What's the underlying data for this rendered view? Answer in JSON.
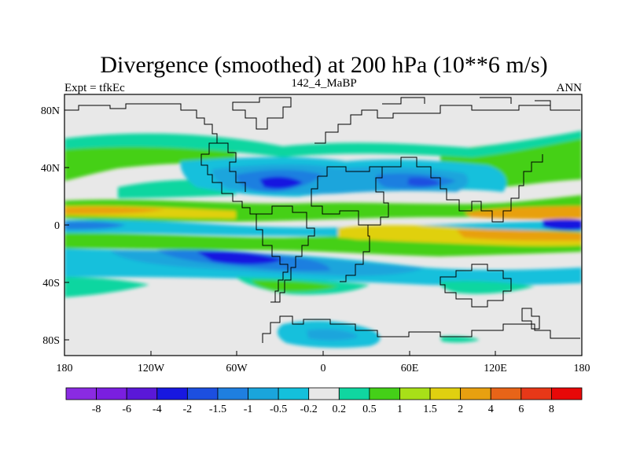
{
  "figure": {
    "title": "Divergence (smoothed) at 200 hPa (10**6 m/s)",
    "left_label": "Expt = tfkEc",
    "center_label": "142_4_MaBP",
    "right_label": "ANN"
  },
  "axes": {
    "x_ticks": [
      "180",
      "120W",
      "60W",
      "0",
      "60E",
      "120E",
      "180"
    ],
    "y_ticks": [
      "80N",
      "40N",
      "0",
      "40S",
      "80S"
    ]
  },
  "colorbar": {
    "labels": [
      "-8",
      "-6",
      "-4",
      "-2",
      "-1.5",
      "-1",
      "-0.5",
      "-0.2",
      "0.2",
      "0.5",
      "1",
      "1.5",
      "2",
      "4",
      "6",
      "8"
    ],
    "colors": [
      "#8a2be2",
      "#7a1fe0",
      "#5a18d8",
      "#1818e0",
      "#1c4fe0",
      "#1f7fe0",
      "#1aa5dc",
      "#14c0dc",
      "#e8e8e8",
      "#10d6a0",
      "#44d018",
      "#a8e018",
      "#e0d010",
      "#e8a010",
      "#e86418",
      "#e83818",
      "#e80808"
    ]
  },
  "palette": {
    "land_outline": "#000000",
    "background_field": "#e8e8e8"
  }
}
